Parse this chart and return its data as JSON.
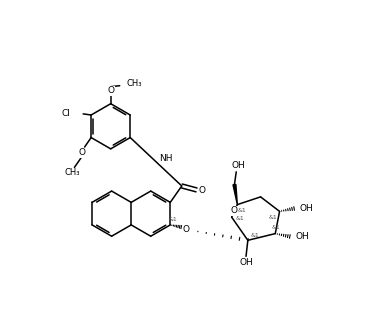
{
  "bg": "#ffffff",
  "lc": "#000000",
  "lw": 1.1,
  "fs": 6.5,
  "fig_w": 3.67,
  "fig_h": 3.29,
  "dpi": 100,
  "xlim": [
    0,
    10
  ],
  "ylim": [
    0,
    9
  ]
}
